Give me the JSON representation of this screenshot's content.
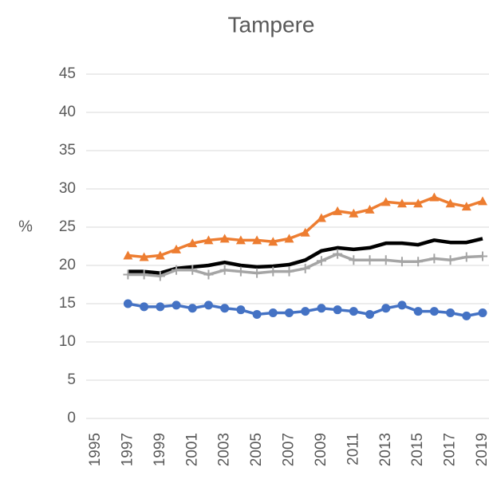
{
  "chart_data": {
    "type": "line",
    "title": "Tampere",
    "y_label": "%",
    "x": [
      1997,
      1998,
      1999,
      2000,
      2001,
      2002,
      2003,
      2004,
      2005,
      2006,
      2007,
      2008,
      2009,
      2010,
      2011,
      2012,
      2013,
      2014,
      2015,
      2016,
      2017,
      2018,
      2019
    ],
    "series": [
      {
        "color": "#4472c4",
        "marker": "circle",
        "values": [
          15.0,
          14.6,
          14.6,
          14.8,
          14.4,
          14.8,
          14.4,
          14.2,
          13.6,
          13.8,
          13.8,
          14.0,
          14.4,
          14.2,
          14.0,
          13.6,
          14.4,
          14.8,
          14.0,
          14.0,
          13.8,
          13.4,
          13.8
        ]
      },
      {
        "color": "#ed7d31",
        "marker": "triangle",
        "values": [
          21.3,
          21.1,
          21.3,
          22.1,
          22.9,
          23.3,
          23.5,
          23.3,
          23.3,
          23.1,
          23.5,
          24.3,
          26.2,
          27.1,
          26.8,
          27.3,
          28.3,
          28.1,
          28.1,
          28.9,
          28.1,
          27.7,
          28.4
        ]
      },
      {
        "color": "#000000",
        "marker": "none",
        "values": [
          19.2,
          19.2,
          19.0,
          19.6,
          19.8,
          20.0,
          20.4,
          20.0,
          19.8,
          19.9,
          20.1,
          20.7,
          21.9,
          22.3,
          22.1,
          22.3,
          22.9,
          22.9,
          22.7,
          23.3,
          23.0,
          23.0,
          23.5
        ]
      },
      {
        "color": "#a5a5a5",
        "marker": "plus",
        "values": [
          18.8,
          18.8,
          18.6,
          19.4,
          19.4,
          18.8,
          19.4,
          19.2,
          19.0,
          19.2,
          19.2,
          19.6,
          20.6,
          21.5,
          20.7,
          20.7,
          20.7,
          20.5,
          20.5,
          20.9,
          20.7,
          21.1,
          21.2
        ]
      }
    ],
    "xlim": [
      1995,
      2019
    ],
    "xticks": [
      1995,
      1997,
      1999,
      2001,
      2003,
      2005,
      2007,
      2009,
      2011,
      2013,
      2015,
      2017,
      2019
    ],
    "ylim": [
      0,
      45
    ],
    "yticks": [
      0,
      5,
      10,
      15,
      20,
      25,
      30,
      35,
      40,
      45
    ],
    "grid": true
  }
}
